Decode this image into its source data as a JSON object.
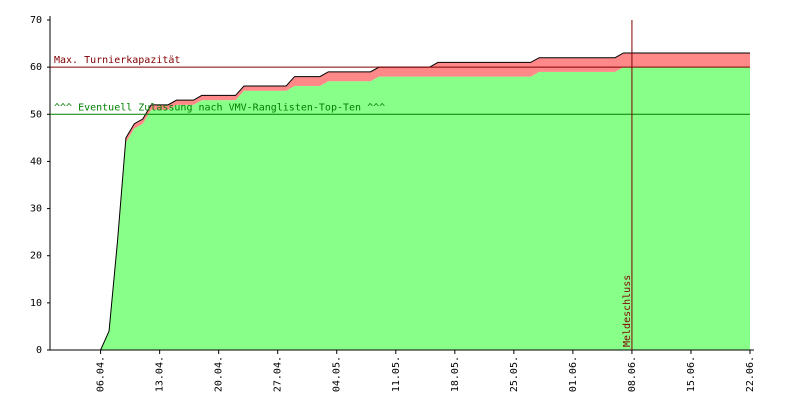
{
  "chart_data": {
    "type": "stacked_area",
    "x": [
      0,
      6,
      7,
      8,
      9,
      10,
      11,
      12,
      14,
      15,
      17,
      18,
      22,
      23,
      28,
      29,
      32,
      33,
      38,
      39,
      45,
      46,
      57,
      58,
      67,
      68,
      83
    ],
    "series": [
      {
        "color": "#88ff88",
        "values": [
          0,
          0,
          4,
          22,
          44,
          47,
          48,
          51,
          51,
          52,
          52,
          53,
          53,
          55,
          55,
          56,
          56,
          57,
          57,
          58,
          58,
          58,
          58,
          59,
          59,
          60,
          60
        ]
      },
      {
        "color": "#ff8888",
        "values": [
          0,
          0,
          0,
          1,
          1,
          1,
          1,
          1,
          1,
          1,
          1,
          1,
          1,
          1,
          1,
          2,
          2,
          2,
          2,
          2,
          2,
          3,
          3,
          3,
          3,
          3,
          3
        ]
      }
    ],
    "xlim": [
      0,
      83
    ],
    "xticks": [
      {
        "value": 6,
        "label": "06.04."
      },
      {
        "value": 13,
        "label": "13.04."
      },
      {
        "value": 20,
        "label": "20.04."
      },
      {
        "value": 27,
        "label": "27.04."
      },
      {
        "value": 34,
        "label": "04.05."
      },
      {
        "value": 41,
        "label": "11.05."
      },
      {
        "value": 48,
        "label": "18.05."
      },
      {
        "value": 55,
        "label": "25.05."
      },
      {
        "value": 62,
        "label": "01.06."
      },
      {
        "value": 69,
        "label": "08.06."
      },
      {
        "value": 76,
        "label": "15.06."
      },
      {
        "value": 83,
        "label": "22.06."
      }
    ],
    "ylim": [
      0,
      70
    ],
    "yticks": [
      0,
      10,
      20,
      30,
      40,
      50,
      60,
      70
    ],
    "hlines": [
      {
        "value": 60,
        "label": "Max. Turnierkapazität",
        "color": "#800000"
      },
      {
        "value": 50,
        "label": "^^^ Eventuell Zulassung nach VMV-Ranglisten-Top-Ten ^^^",
        "color": "#008000"
      }
    ],
    "vlines": [
      {
        "value": 69,
        "label": "Meldeschluss",
        "color": "#800000"
      }
    ]
  }
}
